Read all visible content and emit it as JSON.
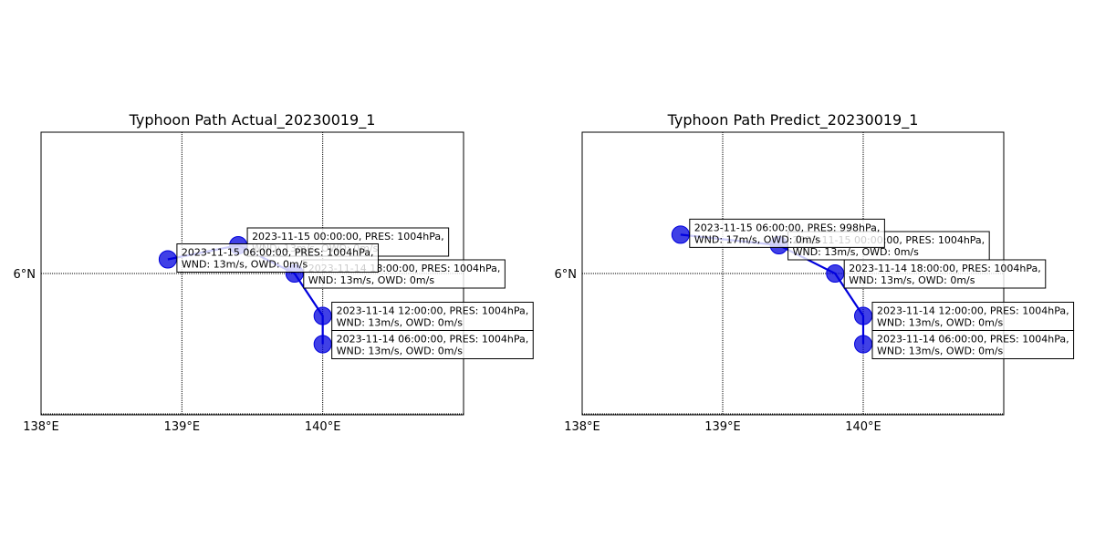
{
  "panels": [
    {
      "title": "Typhoon Path Actual_20230019_1",
      "x_ticks": [
        {
          "value": 138,
          "label": "138°E"
        },
        {
          "value": 139,
          "label": "139°E"
        },
        {
          "value": 140,
          "label": "140°E"
        }
      ],
      "y_ticks": [
        {
          "value": 6,
          "label": "6°N"
        }
      ],
      "extent": {
        "lon": [
          138,
          141
        ],
        "lat": [
          4,
          8
        ]
      },
      "track_color": "#0000dd",
      "points": [
        {
          "lon": 140.0,
          "lat": 5.0,
          "line1": "2023-11-14 06:00:00, PRES: 1004hPa,",
          "line2": "WND: 13m/s, OWD: 0m/s"
        },
        {
          "lon": 140.0,
          "lat": 5.4,
          "line1": "2023-11-14 12:00:00, PRES: 1004hPa,",
          "line2": "WND: 13m/s, OWD: 0m/s"
        },
        {
          "lon": 139.8,
          "lat": 6.0,
          "line1": "2023-11-14 18:00:00, PRES: 1004hPa,",
          "line2": "WND: 13m/s, OWD: 0m/s"
        },
        {
          "lon": 139.4,
          "lat": 6.4,
          "line1": "2023-11-15 00:00:00, PRES: 1004hPa,",
          "line2": "WND: 13m/s, OWD: 0m/s"
        },
        {
          "lon": 138.9,
          "lat": 6.2,
          "line1": "2023-11-15 06:00:00, PRES: 1004hPa,",
          "line2": "WND: 13m/s, OWD: 0m/s"
        }
      ]
    },
    {
      "title": "Typhoon Path Predict_20230019_1",
      "x_ticks": [
        {
          "value": 138,
          "label": "138°E"
        },
        {
          "value": 139,
          "label": "139°E"
        },
        {
          "value": 140,
          "label": "140°E"
        }
      ],
      "y_ticks": [
        {
          "value": 6,
          "label": "6°N"
        }
      ],
      "extent": {
        "lon": [
          138,
          141
        ],
        "lat": [
          4,
          8
        ]
      },
      "track_color": "#0000dd",
      "points": [
        {
          "lon": 140.0,
          "lat": 5.0,
          "line1": "2023-11-14 06:00:00, PRES: 1004hPa,",
          "line2": "WND: 13m/s, OWD: 0m/s"
        },
        {
          "lon": 140.0,
          "lat": 5.4,
          "line1": "2023-11-14 12:00:00, PRES: 1004hPa,",
          "line2": "WND: 13m/s, OWD: 0m/s"
        },
        {
          "lon": 139.8,
          "lat": 6.0,
          "line1": "2023-11-14 18:00:00, PRES: 1004hPa,",
          "line2": "WND: 13m/s, OWD: 0m/s"
        },
        {
          "lon": 139.4,
          "lat": 6.4,
          "line1": "2023-11-15 00:00:00, PRES: 1004hPa,",
          "line2": "WND: 13m/s, OWD: 0m/s"
        },
        {
          "lon": 138.7,
          "lat": 6.55,
          "line1": "2023-11-15 06:00:00, PRES: 998hPa,",
          "line2": "WND: 17m/s, OWD: 0m/s"
        }
      ]
    }
  ]
}
